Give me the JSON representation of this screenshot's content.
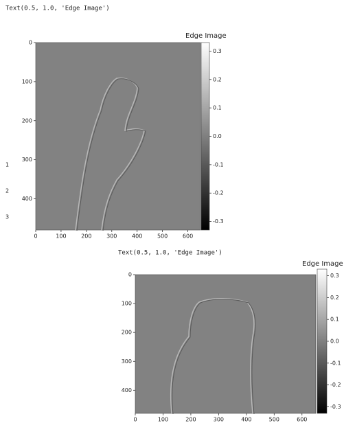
{
  "gutter": [
    "1",
    "2",
    "3"
  ],
  "outputs": [
    {
      "text": "Text(0.5, 1.0, 'Edge Image')",
      "colorbar_title": "Edge Image",
      "xlim": [
        0,
        650
      ],
      "xticks": [
        0,
        100,
        200,
        300,
        400,
        500,
        600
      ],
      "ylim": [
        0,
        480
      ],
      "yticks": [
        0,
        100,
        200,
        300,
        400
      ],
      "clim": [
        -0.33,
        0.33
      ],
      "cticks": [
        0.3,
        0.2,
        0.1,
        {
          "value": 0,
          "label": "0.0"
        },
        -0.1,
        -0.2,
        -0.3
      ]
    },
    {
      "text": "Text(0.5, 1.0, 'Edge Image')",
      "colorbar_title": "Edge Image",
      "xlim": [
        0,
        650
      ],
      "xticks": [
        0,
        100,
        200,
        300,
        400,
        500,
        600
      ],
      "ylim": [
        0,
        480
      ],
      "yticks": [
        0,
        100,
        200,
        300,
        400
      ],
      "clim": [
        -0.33,
        0.33
      ],
      "cticks": [
        0.3,
        0.2,
        0.1,
        {
          "value": 0,
          "label": "0.0"
        },
        -0.1,
        -0.2,
        -0.3
      ]
    }
  ]
}
